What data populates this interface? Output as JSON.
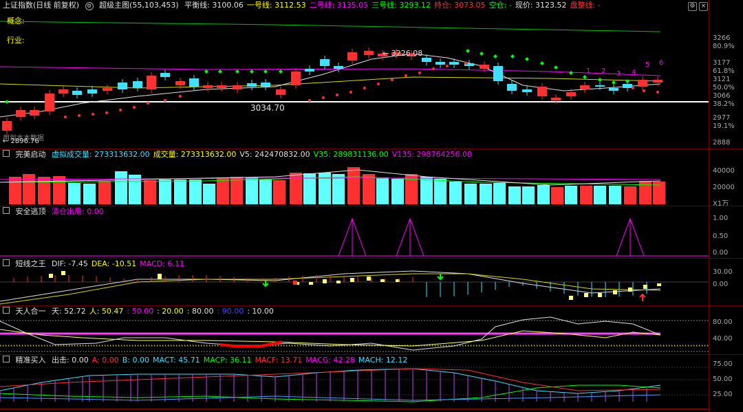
{
  "main": {
    "title": "上证指数(日线 前复权)",
    "indicator": "超级主图(55,103,453)",
    "items": [
      {
        "label": "平衡线:",
        "value": "3100.06",
        "color": "#e0e0e0"
      },
      {
        "label": "一号线:",
        "value": "3112.53",
        "color": "#ffff00"
      },
      {
        "label": "二号线:",
        "value": "3135.05",
        "color": "#ff00ff"
      },
      {
        "label": "三号线:",
        "value": "3293.12",
        "color": "#00ff00"
      },
      {
        "label": "持仓:",
        "value": "3073.05",
        "color": "#ff3030"
      },
      {
        "label": "空仓:",
        "value": "-",
        "color": "#00ff00"
      },
      {
        "label": "现价:",
        "value": "3123.52",
        "color": "#e0e0e0"
      },
      {
        "label": "盘整线:",
        "value": "-",
        "color": "#ff3030"
      }
    ],
    "concept_label": "概念:",
    "industry_label": "行业:",
    "high_label": "3226.08",
    "low_label": "3034.70",
    "bottom_label": "← 2896.76",
    "bottom_hint": "用到本本数据",
    "wave_numbers": [
      "1",
      "2",
      "3",
      "4",
      "5",
      "6"
    ],
    "axis": [
      {
        "v": "3266",
        "t": "price"
      },
      {
        "v": "80.9%",
        "t": "pct"
      },
      {
        "v": "3177",
        "t": "price"
      },
      {
        "v": "61.8%",
        "t": "pct"
      },
      {
        "v": "3121",
        "t": "price"
      },
      {
        "v": "50.0%",
        "t": "pct"
      },
      {
        "v": "3066",
        "t": "price"
      },
      {
        "v": "38.2%",
        "t": "pct"
      },
      {
        "v": "2977",
        "t": "price"
      },
      {
        "v": "19.1%",
        "t": "pct"
      },
      {
        "v": "2888",
        "t": "price"
      }
    ]
  },
  "vol": {
    "title": "完美启动",
    "items": [
      {
        "label": "虚拟成交量:",
        "value": "273313632.00",
        "color": "#40e0ff"
      },
      {
        "label": "成交量:",
        "value": "273313632.00",
        "color": "#ffff00"
      },
      {
        "label": "V5:",
        "value": "242470832.00",
        "color": "#e0e0e0"
      },
      {
        "label": "V35:",
        "value": "289831136.00",
        "color": "#00ff00"
      },
      {
        "label": "V135:",
        "value": "298764256.00",
        "color": "#ff00ff"
      }
    ],
    "axis": [
      "40000",
      "20000",
      "X1万"
    ]
  },
  "safe": {
    "title": "安全逃顶",
    "items": [
      {
        "label": "清仓出局:",
        "value": "0.00",
        "color": "#ff00ff"
      }
    ],
    "axis": [
      "1.00",
      "0.50",
      "0.00"
    ]
  },
  "macd": {
    "title": "短线之王",
    "items": [
      {
        "label": "DIF:",
        "value": "-7.45",
        "color": "#e0e0e0"
      },
      {
        "label": "DEA:",
        "value": "-10.51",
        "color": "#ffff00"
      },
      {
        "label": "MACD:",
        "value": "6.11",
        "color": "#ff00ff"
      }
    ],
    "axis": [
      "30.00",
      "0.00"
    ]
  },
  "tianren": {
    "title": "天人合一",
    "items": [
      {
        "label": "天:",
        "value": "52.72",
        "color": "#e0e0e0"
      },
      {
        "label": "人:",
        "value": "50.47",
        "color": "#ffff00"
      },
      {
        "label": ":",
        "value": "50.00",
        "color": "#ff00ff"
      },
      {
        "label": ":",
        "value": "20.00",
        "color": "#ffff00"
      },
      {
        "label": ":",
        "value": "80.00",
        "color": "#e0e0e0"
      },
      {
        "label": ":",
        "value": "90.00",
        "color": "#4040ff"
      },
      {
        "label": ":",
        "value": "10.00",
        "color": "#e0e0e0"
      }
    ],
    "axis": [
      "80.00",
      "40.00"
    ]
  },
  "buy": {
    "title": "精准买入",
    "items": [
      {
        "label": "出击:",
        "value": "0.00",
        "color": "#e0e0e0"
      },
      {
        "label": "A:",
        "value": "0.00",
        "color": "#ff3030"
      },
      {
        "label": "B:",
        "value": "0.00",
        "color": "#40e0ff"
      },
      {
        "label": "MACT:",
        "value": "45.71",
        "color": "#40e0ff"
      },
      {
        "label": "MACP:",
        "value": "36.11",
        "color": "#00ff00"
      },
      {
        "label": "MACF:",
        "value": "13.71",
        "color": "#ff3030"
      },
      {
        "label": "MACG:",
        "value": "42.28",
        "color": "#ff00ff"
      },
      {
        "label": "MACH:",
        "value": "12.12",
        "color": "#40e0ff"
      }
    ],
    "axis": [
      "75.00",
      "50.00",
      "25.00"
    ]
  }
}
